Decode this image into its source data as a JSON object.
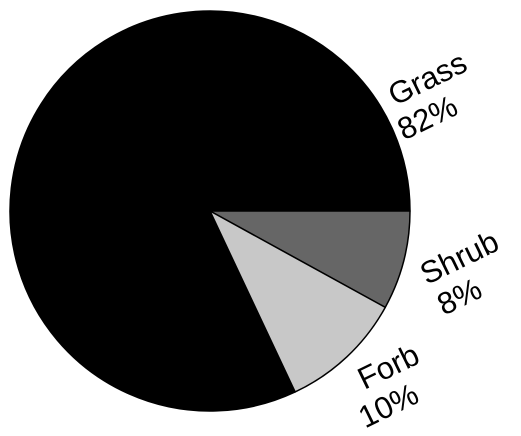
{
  "chart_data": {
    "type": "pie",
    "slices": [
      {
        "label": "Grass",
        "value": 82,
        "value_label": "82%",
        "color": "#000000"
      },
      {
        "label": "Shrub",
        "value": 8,
        "value_label": "8%",
        "color": "#666666"
      },
      {
        "label": "Forb",
        "value": 10,
        "value_label": "10%",
        "color": "#c8c8c8"
      }
    ],
    "start_angle": "3 o'clock",
    "direction": "counter-clockwise for Grass, then Shrub and Forb clockwise",
    "legend": "none"
  }
}
